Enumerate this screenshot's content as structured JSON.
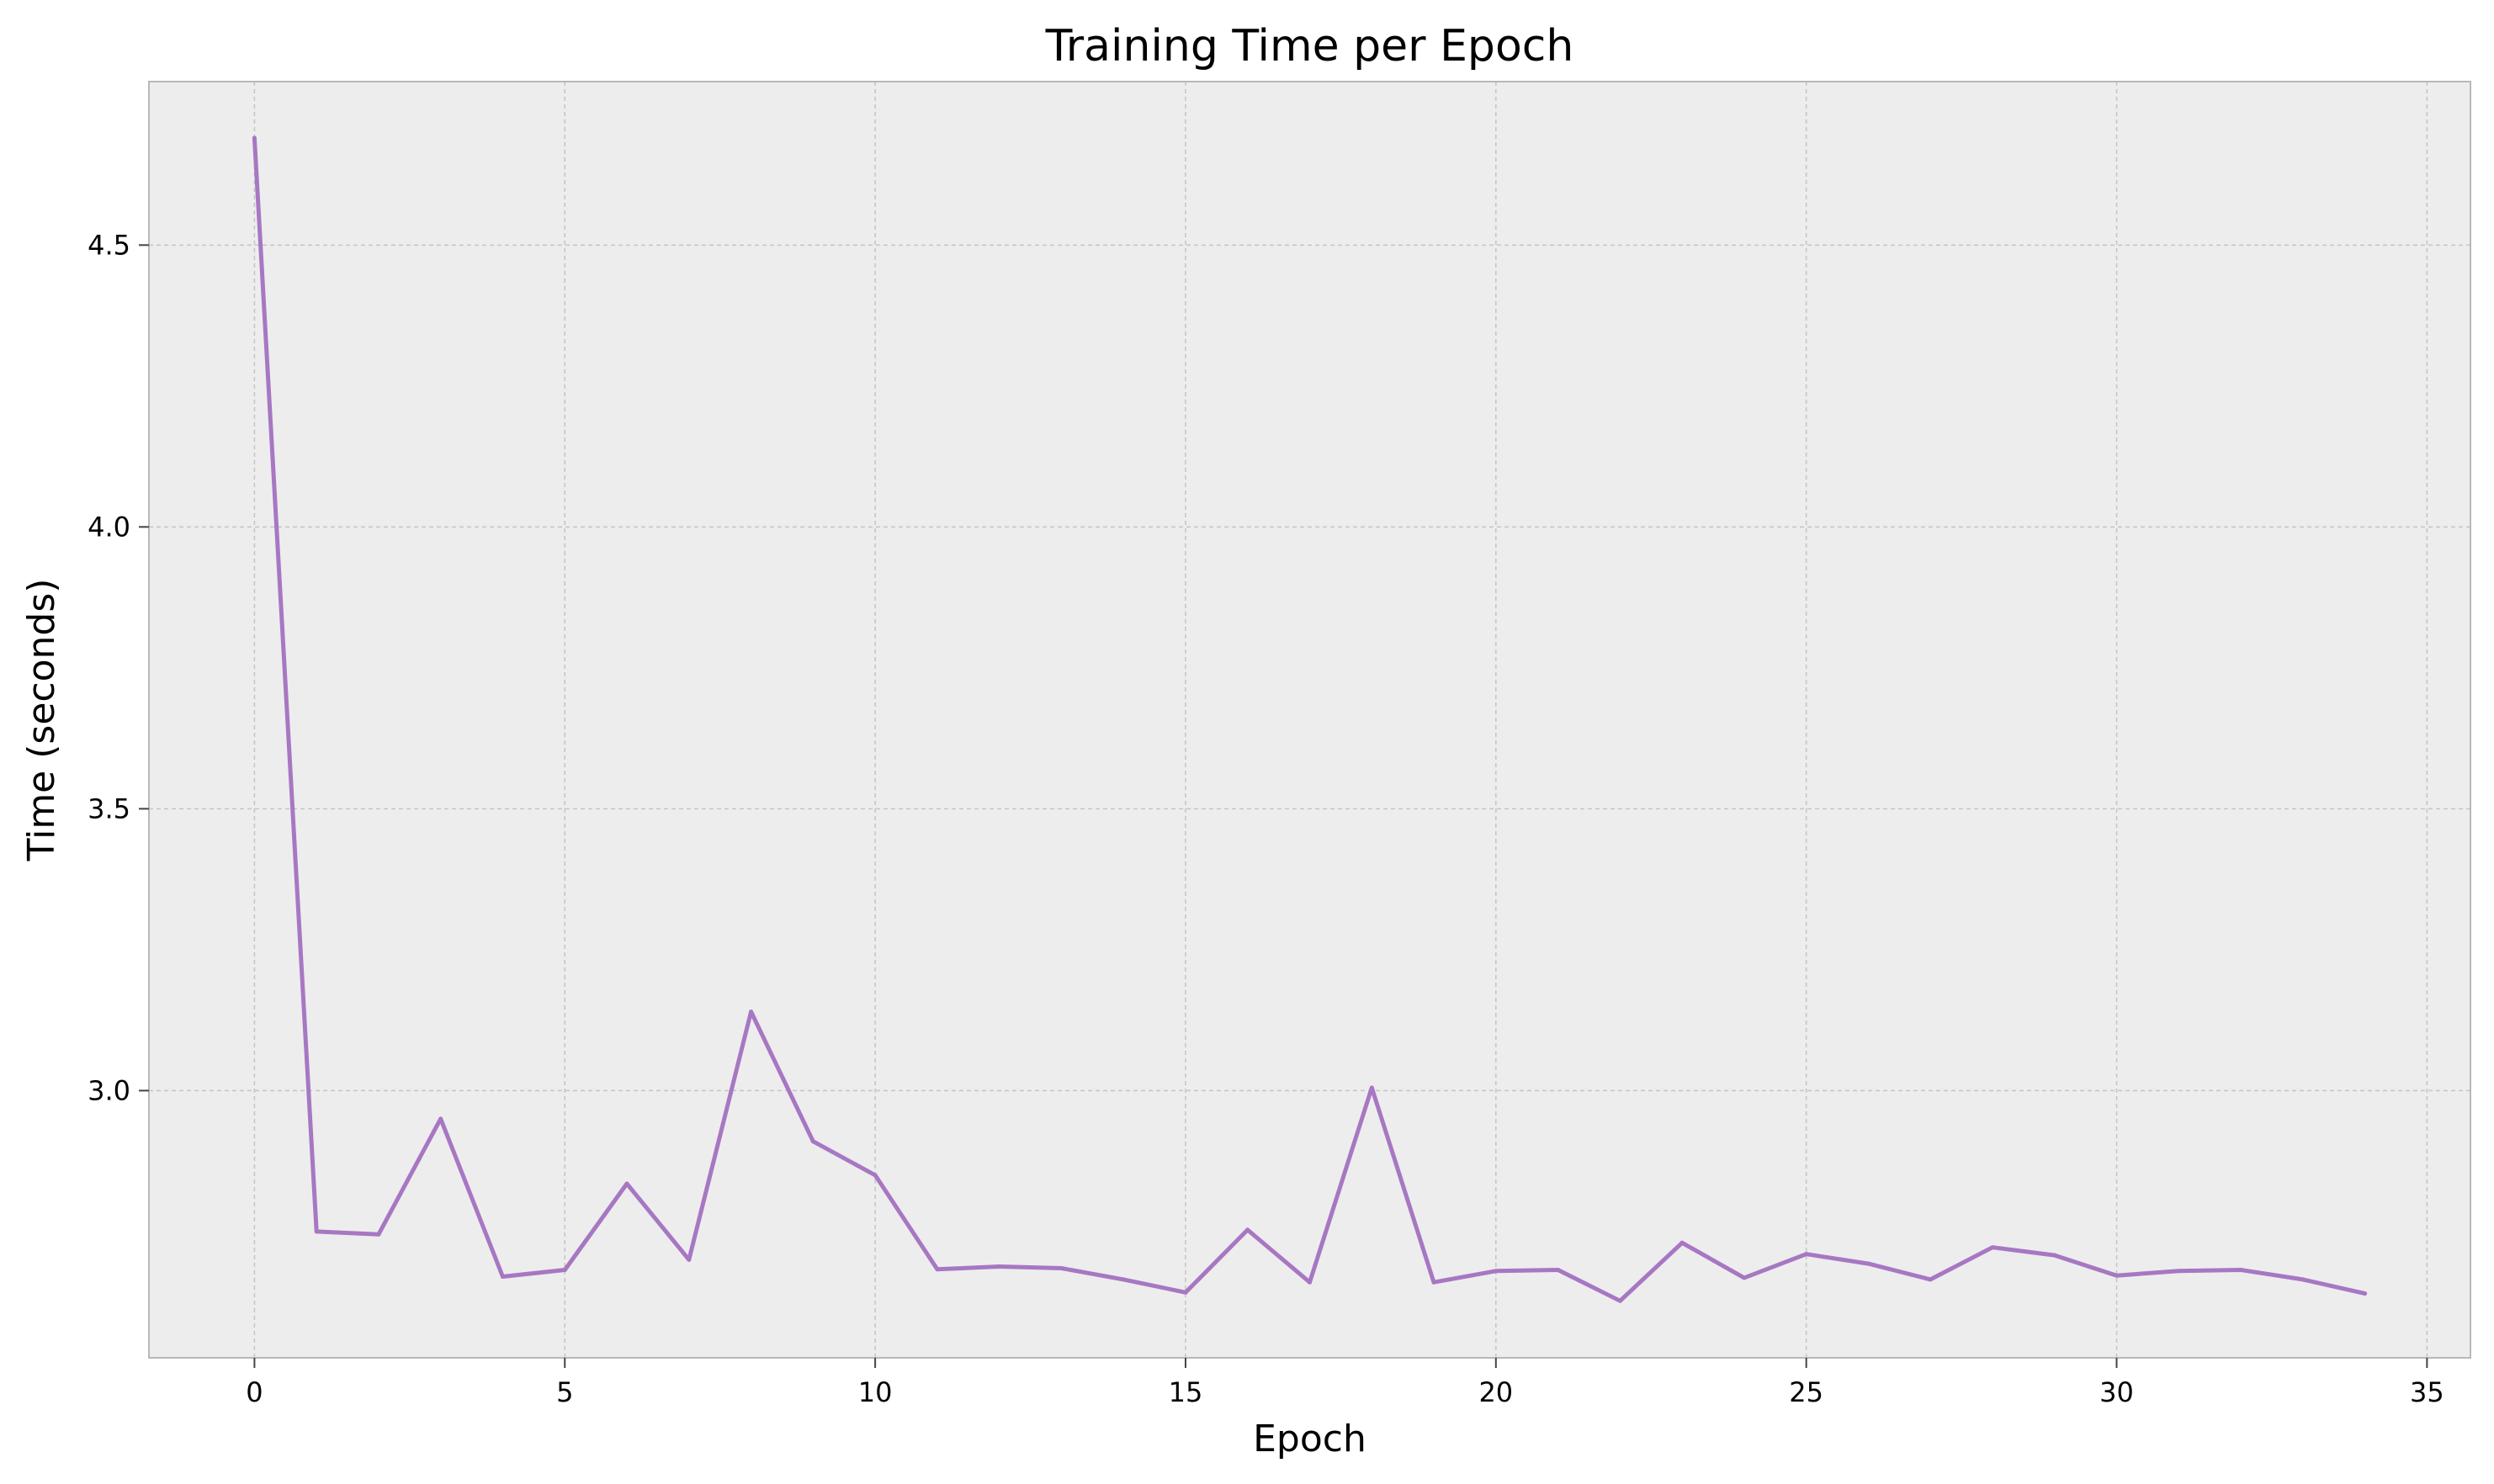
{
  "chart_data": {
    "type": "line",
    "title": "Training Time per Epoch",
    "xlabel": "Epoch",
    "ylabel": "Time (seconds)",
    "xlim": [
      -1.7,
      35.7
    ],
    "ylim": [
      2.526,
      4.79
    ],
    "xticks": [
      0,
      5,
      10,
      15,
      20,
      25,
      30,
      35
    ],
    "xtick_labels": [
      "0",
      "5",
      "10",
      "15",
      "20",
      "25",
      "30",
      "35"
    ],
    "yticks": [
      3.0,
      3.5,
      4.0,
      4.5
    ],
    "ytick_labels": [
      "3.0",
      "3.5",
      "4.0",
      "4.5"
    ],
    "grid": true,
    "series": [
      {
        "color": "#a777c3",
        "x": [
          0,
          1,
          2,
          3,
          4,
          5,
          6,
          7,
          8,
          9,
          10,
          11,
          12,
          13,
          14,
          15,
          16,
          17,
          18,
          19,
          20,
          21,
          22,
          23,
          24,
          25,
          26,
          27,
          28,
          29,
          30,
          31,
          32,
          33,
          34
        ],
        "y": [
          4.69,
          2.75,
          2.745,
          2.95,
          2.67,
          2.682,
          2.835,
          2.7,
          3.14,
          2.91,
          2.85,
          2.683,
          2.688,
          2.685,
          2.665,
          2.642,
          2.753,
          2.66,
          3.005,
          2.66,
          2.68,
          2.682,
          2.627,
          2.73,
          2.668,
          2.71,
          2.693,
          2.665,
          2.722,
          2.708,
          2.672,
          2.68,
          2.682,
          2.665,
          2.64
        ]
      }
    ]
  }
}
